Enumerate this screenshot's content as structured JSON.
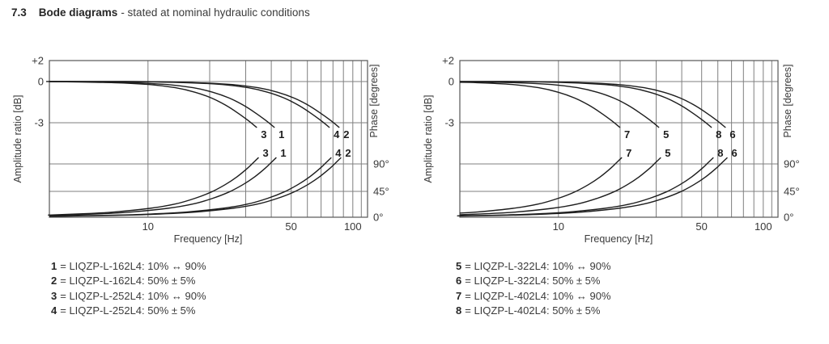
{
  "title": {
    "number": "7.3",
    "heading": "Bode diagrams",
    "subtitle": "- stated at nominal hydraulic conditions"
  },
  "colors": {
    "text": "#3b3b3b",
    "heading_text": "#262626",
    "grid": "#7f7f7f",
    "plot_border": "#565656",
    "curve": "#1d1d1d"
  },
  "chart_data": [
    {
      "type": "line",
      "name": "bode-diagram-left",
      "x_axis": {
        "label": "Frequency [Hz]",
        "scale": "log",
        "min_hz": 3.3,
        "max_hz": 118,
        "gridlines_hz": [
          10,
          20,
          30,
          40,
          50,
          60,
          70,
          80,
          90,
          100,
          110
        ],
        "tick_labels": [
          {
            "hz": 10,
            "text": "10"
          },
          {
            "hz": 50,
            "text": "50"
          },
          {
            "hz": 100,
            "text": "100"
          }
        ]
      },
      "y_left": {
        "label": "Amplitude ratio [dB]",
        "ticks": [
          {
            "db": 2,
            "text": "+2"
          },
          {
            "db": 0,
            "text": "0"
          },
          {
            "db": -3,
            "text": "-3"
          }
        ]
      },
      "y_right": {
        "label": "Phase [degrees]",
        "ticks": [
          {
            "deg": 90,
            "text": "90°"
          },
          {
            "deg": 45,
            "text": "45°"
          },
          {
            "deg": 0,
            "text": "0°"
          }
        ]
      },
      "curves": [
        {
          "label": "3",
          "f_end_hz": 34,
          "f_minus3db_hz": 32
        },
        {
          "label": "1",
          "f_end_hz": 41.5,
          "f_minus3db_hz": 39
        },
        {
          "label": "4",
          "f_end_hz": 77,
          "f_minus3db_hz": 72
        },
        {
          "label": "2",
          "f_end_hz": 86,
          "f_minus3db_hz": 80
        }
      ]
    },
    {
      "type": "line",
      "name": "bode-diagram-right",
      "x_axis": {
        "label": "Frequency [Hz]",
        "scale": "log",
        "min_hz": 3.3,
        "max_hz": 118,
        "gridlines_hz": [
          10,
          20,
          30,
          40,
          50,
          60,
          70,
          80,
          90,
          100,
          110
        ],
        "tick_labels": [
          {
            "hz": 10,
            "text": "10"
          },
          {
            "hz": 50,
            "text": "50"
          },
          {
            "hz": 100,
            "text": "100"
          }
        ]
      },
      "y_left": {
        "label": "Amplitude ratio [dB]",
        "ticks": [
          {
            "db": 2,
            "text": "+2"
          },
          {
            "db": 0,
            "text": "0"
          },
          {
            "db": -3,
            "text": "-3"
          }
        ]
      },
      "y_right": {
        "label": "Phase [degrees]",
        "ticks": [
          {
            "deg": 90,
            "text": "90°"
          },
          {
            "deg": 45,
            "text": "45°"
          },
          {
            "deg": 0,
            "text": "0°"
          }
        ]
      },
      "curves": [
        {
          "label": "7",
          "f_end_hz": 20,
          "f_minus3db_hz": 19
        },
        {
          "label": "5",
          "f_end_hz": 31,
          "f_minus3db_hz": 29
        },
        {
          "label": "8",
          "f_end_hz": 56,
          "f_minus3db_hz": 52
        },
        {
          "label": "6",
          "f_end_hz": 65.5,
          "f_minus3db_hz": 61
        }
      ]
    }
  ],
  "curve_profiles": {
    "note": "u = frequency / f_end_hz; each plotted curve terminates at f_end_hz (≈ -3.3 dB amplitude, ≈ 100° phase lag)",
    "amplitude_db_vs_u": {
      "u": [
        0.05,
        0.1,
        0.2,
        0.3,
        0.4,
        0.5,
        0.6,
        0.7,
        0.8,
        0.9,
        1.0
      ],
      "db": [
        0,
        0,
        -0.08,
        -0.22,
        -0.45,
        -0.78,
        -1.2,
        -1.7,
        -2.25,
        -2.8,
        -3.35
      ]
    },
    "phase_deg_vs_u": {
      "u": [
        0.03,
        0.06,
        0.1,
        0.15,
        0.2,
        0.3,
        0.4,
        0.5,
        0.6,
        0.7,
        0.8,
        0.9,
        0.96,
        1.02
      ],
      "deg": [
        1,
        2.5,
        4,
        6.5,
        9,
        15.5,
        23,
        33,
        44,
        56,
        69,
        83,
        92,
        100.5
      ]
    }
  },
  "legends": {
    "left": [
      {
        "num": "1",
        "text": "= LIQZP-L-162L4: 10% ↔ 90%"
      },
      {
        "num": "2",
        "text": "= LIQZP-L-162L4: 50% ± 5%"
      },
      {
        "num": "3",
        "text": "= LIQZP-L-252L4: 10% ↔ 90%"
      },
      {
        "num": "4",
        "text": "= LIQZP-L-252L4: 50% ± 5%"
      }
    ],
    "right": [
      {
        "num": "5",
        "text": "= LIQZP-L-322L4: 10% ↔ 90%"
      },
      {
        "num": "6",
        "text": "= LIQZP-L-322L4: 50% ± 5%"
      },
      {
        "num": "7",
        "text": "= LIQZP-L-402L4: 10% ↔ 90%"
      },
      {
        "num": "8",
        "text": "= LIQZP-L-402L4: 50% ± 5%"
      }
    ]
  }
}
